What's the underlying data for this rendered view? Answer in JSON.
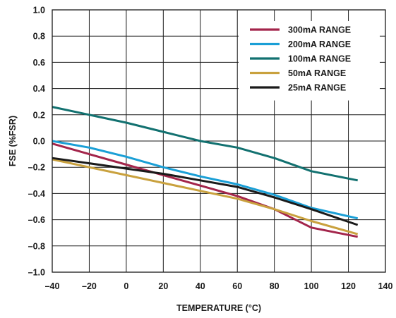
{
  "chart_data": {
    "type": "line",
    "title": "",
    "xlabel": "TEMPERATURE (°C)",
    "ylabel": "FSE (%FSR)",
    "xlim": [
      -40,
      140
    ],
    "ylim": [
      -1.0,
      1.0
    ],
    "x_ticks": [
      -40,
      -20,
      0,
      20,
      40,
      60,
      80,
      100,
      120,
      140
    ],
    "y_ticks": [
      -1.0,
      -0.8,
      -0.6,
      -0.4,
      -0.2,
      0.0,
      0.2,
      0.4,
      0.6,
      0.8,
      1.0
    ],
    "x_tick_labels": [
      "–40",
      "–20",
      "0",
      "20",
      "40",
      "60",
      "80",
      "100",
      "120",
      "140"
    ],
    "y_tick_labels": [
      "–1.0",
      "–0.8",
      "–0.6",
      "–0.4",
      "–0.2",
      "0.0",
      "0.2",
      "0.4",
      "0.6",
      "0.8",
      "1.0"
    ],
    "grid": true,
    "legend_position": "top-right",
    "series": [
      {
        "name": "300mA RANGE",
        "color": "#a3254b",
        "x": [
          -40,
          -20,
          0,
          20,
          40,
          60,
          80,
          100,
          125
        ],
        "y": [
          -0.02,
          -0.1,
          -0.18,
          -0.26,
          -0.34,
          -0.42,
          -0.52,
          -0.66,
          -0.73
        ]
      },
      {
        "name": "200mA RANGE",
        "color": "#1a9fd6",
        "x": [
          -40,
          -20,
          0,
          20,
          40,
          60,
          80,
          100,
          125
        ],
        "y": [
          0.0,
          -0.05,
          -0.12,
          -0.2,
          -0.27,
          -0.33,
          -0.41,
          -0.51,
          -0.59
        ]
      },
      {
        "name": "100mA RANGE",
        "color": "#127170",
        "x": [
          -40,
          -20,
          0,
          20,
          40,
          60,
          80,
          100,
          125
        ],
        "y": [
          0.26,
          0.2,
          0.14,
          0.07,
          0.0,
          -0.05,
          -0.13,
          -0.23,
          -0.3
        ]
      },
      {
        "name": "50mA RANGE",
        "color": "#c9a13e",
        "x": [
          -40,
          -20,
          0,
          20,
          40,
          60,
          80,
          100,
          125
        ],
        "y": [
          -0.14,
          -0.2,
          -0.26,
          -0.32,
          -0.38,
          -0.44,
          -0.52,
          -0.61,
          -0.71
        ]
      },
      {
        "name": "25mA RANGE",
        "color": "#1a1a1a",
        "x": [
          -40,
          -20,
          0,
          20,
          40,
          60,
          80,
          100,
          125
        ],
        "y": [
          -0.13,
          -0.17,
          -0.21,
          -0.25,
          -0.3,
          -0.35,
          -0.43,
          -0.52,
          -0.64
        ]
      }
    ]
  }
}
